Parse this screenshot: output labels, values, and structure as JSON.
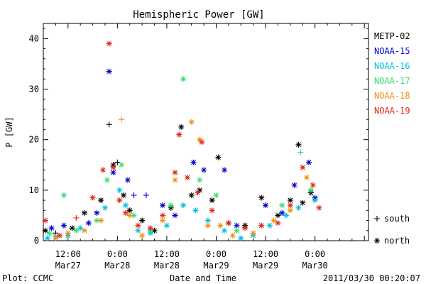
{
  "chart_data": {
    "type": "scatter",
    "title": "Hemispheric Power [GW]",
    "ylabel": "P [GW]",
    "xlabel": "Date and Time",
    "ylim": [
      0,
      43
    ],
    "x_range_hours": [
      -18,
      61
    ],
    "x_units_note": "hours since 2011/03/28 00:00 UT",
    "y_ticks": [
      "0",
      "10",
      "20",
      "30",
      "40"
    ],
    "y_tick_values": [
      0,
      10,
      20,
      30,
      40
    ],
    "x_ticks": [
      {
        "t": 12,
        "time": "12:00",
        "date": "Mar27",
        "hour": -12
      },
      {
        "t": 0,
        "time": "0:00",
        "date": "Mar28",
        "hour": 0
      },
      {
        "t": 12,
        "time": "12:00",
        "date": "Mar28",
        "hour": 12
      },
      {
        "t": 0,
        "time": "0:00",
        "date": "Mar29",
        "hour": 24
      },
      {
        "t": 12,
        "time": "12:00",
        "date": "Mar29",
        "hour": 36
      },
      {
        "t": 0,
        "time": "0:00",
        "date": "Mar30",
        "hour": 48
      }
    ],
    "footer_left": "Plot: CCMC",
    "footer_right": "2011/03/30 00:20:07",
    "marker_legend": [
      {
        "symbol": "+",
        "label": "south"
      },
      {
        "symbol": "*",
        "label": "north"
      }
    ],
    "series": [
      {
        "name": "METP-02",
        "color": "#000000",
        "points": [
          {
            "x": -17.5,
            "y": 2.0,
            "m": "*"
          },
          {
            "x": -15,
            "y": 1.5,
            "m": "+"
          },
          {
            "x": -11,
            "y": 2.5,
            "m": "*"
          },
          {
            "x": -8,
            "y": 5.5,
            "m": "*"
          },
          {
            "x": -4,
            "y": 8.0,
            "m": "*"
          },
          {
            "x": -2,
            "y": 23.0,
            "m": "+"
          },
          {
            "x": -1.0,
            "y": 15.0,
            "m": "*"
          },
          {
            "x": 0,
            "y": 15.5,
            "m": "+"
          },
          {
            "x": 1.5,
            "y": 9.0,
            "m": "*"
          },
          {
            "x": 3,
            "y": 6.0,
            "m": "*"
          },
          {
            "x": 6,
            "y": 4.0,
            "m": "*"
          },
          {
            "x": 9,
            "y": 2.0,
            "m": "*"
          },
          {
            "x": 13,
            "y": 6.5,
            "m": "*"
          },
          {
            "x": 15.5,
            "y": 22.5,
            "m": "*"
          },
          {
            "x": 18,
            "y": 9.0,
            "m": "*"
          },
          {
            "x": 20,
            "y": 10.0,
            "m": "*"
          },
          {
            "x": 23,
            "y": 8.0,
            "m": "*"
          },
          {
            "x": 24.5,
            "y": 16.5,
            "m": "*"
          },
          {
            "x": 27,
            "y": 3.5,
            "m": "*"
          },
          {
            "x": 31,
            "y": 3.0,
            "m": "*"
          },
          {
            "x": 35,
            "y": 8.5,
            "m": "*"
          },
          {
            "x": 39,
            "y": 5.0,
            "m": "*"
          },
          {
            "x": 42,
            "y": 8.0,
            "m": "*"
          },
          {
            "x": 44,
            "y": 19.0,
            "m": "*"
          },
          {
            "x": 45,
            "y": 7.5,
            "m": "*"
          },
          {
            "x": 47,
            "y": 9.5,
            "m": "*"
          }
        ]
      },
      {
        "name": "NOAA-15",
        "color": "#0000cd",
        "points": [
          {
            "x": -16,
            "y": 2.5,
            "m": "*"
          },
          {
            "x": -13,
            "y": 3.0,
            "m": "*"
          },
          {
            "x": -7,
            "y": 3.5,
            "m": "*"
          },
          {
            "x": -5,
            "y": 5.5,
            "m": "*"
          },
          {
            "x": -2,
            "y": 33.5,
            "m": "*"
          },
          {
            "x": -1,
            "y": 13.5,
            "m": "*"
          },
          {
            "x": 2.5,
            "y": 12.0,
            "m": "*"
          },
          {
            "x": 4,
            "y": 9.0,
            "m": "+"
          },
          {
            "x": 7,
            "y": 9.0,
            "m": "+"
          },
          {
            "x": 11,
            "y": 7.0,
            "m": "*"
          },
          {
            "x": 14,
            "y": 5.0,
            "m": "*"
          },
          {
            "x": 18.5,
            "y": 15.5,
            "m": "*"
          },
          {
            "x": 21,
            "y": 14.0,
            "m": "*"
          },
          {
            "x": 26,
            "y": 14.0,
            "m": "*"
          },
          {
            "x": 29,
            "y": 3.0,
            "m": "*"
          },
          {
            "x": 36,
            "y": 7.0,
            "m": "*"
          },
          {
            "x": 40,
            "y": 5.5,
            "m": "*"
          },
          {
            "x": 43,
            "y": 11.0,
            "m": "*"
          },
          {
            "x": 46.5,
            "y": 15.5,
            "m": "*"
          },
          {
            "x": 48,
            "y": 8.5,
            "m": "*"
          }
        ]
      },
      {
        "name": "NOAA-16",
        "color": "#00c0e0",
        "points": [
          {
            "x": -17,
            "y": 0.5,
            "m": "*"
          },
          {
            "x": -15,
            "y": 0.8,
            "m": "*"
          },
          {
            "x": -12,
            "y": 1.0,
            "m": "*"
          },
          {
            "x": -9,
            "y": 2.5,
            "m": "*"
          },
          {
            "x": -3,
            "y": 6.5,
            "m": "*"
          },
          {
            "x": 0.5,
            "y": 10.0,
            "m": "*"
          },
          {
            "x": 2,
            "y": 7.0,
            "m": "*"
          },
          {
            "x": 5,
            "y": 2.0,
            "m": "*"
          },
          {
            "x": 8,
            "y": 1.5,
            "m": "*"
          },
          {
            "x": 12,
            "y": 3.0,
            "m": "*"
          },
          {
            "x": 16,
            "y": 7.0,
            "m": "*"
          },
          {
            "x": 19,
            "y": 6.0,
            "m": "*"
          },
          {
            "x": 22,
            "y": 4.0,
            "m": "*"
          },
          {
            "x": 26,
            "y": 2.0,
            "m": "*"
          },
          {
            "x": 30,
            "y": 0.5,
            "m": "*"
          },
          {
            "x": 33,
            "y": 1.0,
            "m": "*"
          },
          {
            "x": 37,
            "y": 3.0,
            "m": "*"
          },
          {
            "x": 41,
            "y": 5.0,
            "m": "*"
          },
          {
            "x": 44,
            "y": 6.5,
            "m": "*"
          },
          {
            "x": 48,
            "y": 8.0,
            "m": "*"
          }
        ]
      },
      {
        "name": "NOAA-17",
        "color": "#30e070",
        "points": [
          {
            "x": -16.5,
            "y": 1.5,
            "m": "*"
          },
          {
            "x": -13,
            "y": 9.0,
            "m": "*"
          },
          {
            "x": -10,
            "y": 2.0,
            "m": "*"
          },
          {
            "x": -5,
            "y": 4.0,
            "m": "*"
          },
          {
            "x": -2.5,
            "y": 12.0,
            "m": "*"
          },
          {
            "x": 1,
            "y": 15.0,
            "m": "*"
          },
          {
            "x": 4,
            "y": 5.0,
            "m": "*"
          },
          {
            "x": 8,
            "y": 2.0,
            "m": "*"
          },
          {
            "x": 13,
            "y": 7.0,
            "m": "*"
          },
          {
            "x": 16,
            "y": 32.0,
            "m": "*"
          },
          {
            "x": 20,
            "y": 12.0,
            "m": "*"
          },
          {
            "x": 24,
            "y": 9.0,
            "m": "*"
          },
          {
            "x": 29,
            "y": 2.0,
            "m": "*"
          },
          {
            "x": 35,
            "y": 3.0,
            "m": "*"
          },
          {
            "x": 40,
            "y": 7.0,
            "m": "*"
          },
          {
            "x": 44.5,
            "y": 17.5,
            "m": "+"
          },
          {
            "x": 47,
            "y": 10.0,
            "m": "*"
          }
        ]
      },
      {
        "name": "NOAA-18",
        "color": "#f09010",
        "points": [
          {
            "x": -15,
            "y": 0.5,
            "m": "*"
          },
          {
            "x": -12,
            "y": 1.5,
            "m": "*"
          },
          {
            "x": -8,
            "y": 2.0,
            "m": "*"
          },
          {
            "x": -4,
            "y": 4.0,
            "m": "*"
          },
          {
            "x": 1,
            "y": 24.0,
            "m": "+"
          },
          {
            "x": 3,
            "y": 5.0,
            "m": "*"
          },
          {
            "x": 6,
            "y": 1.0,
            "m": "*"
          },
          {
            "x": 11,
            "y": 4.0,
            "m": "*"
          },
          {
            "x": 14,
            "y": 12.0,
            "m": "*"
          },
          {
            "x": 18,
            "y": 23.5,
            "m": "*"
          },
          {
            "x": 20,
            "y": 20.0,
            "m": "*"
          },
          {
            "x": 22,
            "y": 3.0,
            "m": "*"
          },
          {
            "x": 25,
            "y": 3.0,
            "m": "*"
          },
          {
            "x": 28,
            "y": 1.0,
            "m": "*"
          },
          {
            "x": 33,
            "y": 1.5,
            "m": "*"
          },
          {
            "x": 38,
            "y": 4.0,
            "m": "*"
          },
          {
            "x": 42,
            "y": 6.0,
            "m": "*"
          },
          {
            "x": 46,
            "y": 12.5,
            "m": "*"
          }
        ]
      },
      {
        "name": "NOAA-19",
        "color": "#e02810",
        "points": [
          {
            "x": -17.5,
            "y": 4.0,
            "m": "*"
          },
          {
            "x": -14,
            "y": 1.0,
            "m": "*"
          },
          {
            "x": -10,
            "y": 4.5,
            "m": "+"
          },
          {
            "x": -6,
            "y": 8.5,
            "m": "*"
          },
          {
            "x": -3.5,
            "y": 14.0,
            "m": "*"
          },
          {
            "x": -2,
            "y": 39.0,
            "m": "*"
          },
          {
            "x": -1,
            "y": 14.5,
            "m": "*"
          },
          {
            "x": 0.5,
            "y": 8.0,
            "m": "*"
          },
          {
            "x": 2,
            "y": 5.5,
            "m": "*"
          },
          {
            "x": 5,
            "y": 3.0,
            "m": "*"
          },
          {
            "x": 8,
            "y": 2.5,
            "m": "*"
          },
          {
            "x": 11,
            "y": 5.0,
            "m": "*"
          },
          {
            "x": 14,
            "y": 13.5,
            "m": "*"
          },
          {
            "x": 15,
            "y": 21.0,
            "m": "*"
          },
          {
            "x": 17,
            "y": 12.5,
            "m": "*"
          },
          {
            "x": 19.5,
            "y": 9.5,
            "m": "*"
          },
          {
            "x": 20.5,
            "y": 19.5,
            "m": "*"
          },
          {
            "x": 23,
            "y": 6.0,
            "m": "*"
          },
          {
            "x": 27,
            "y": 3.5,
            "m": "*"
          },
          {
            "x": 31,
            "y": 2.5,
            "m": "*"
          },
          {
            "x": 35,
            "y": 3.0,
            "m": "*"
          },
          {
            "x": 39,
            "y": 3.5,
            "m": "*"
          },
          {
            "x": 42,
            "y": 7.0,
            "m": "*"
          },
          {
            "x": 45,
            "y": 14.5,
            "m": "*"
          },
          {
            "x": 47.5,
            "y": 11.0,
            "m": "*"
          },
          {
            "x": 49,
            "y": 6.5,
            "m": "*"
          }
        ]
      }
    ]
  }
}
